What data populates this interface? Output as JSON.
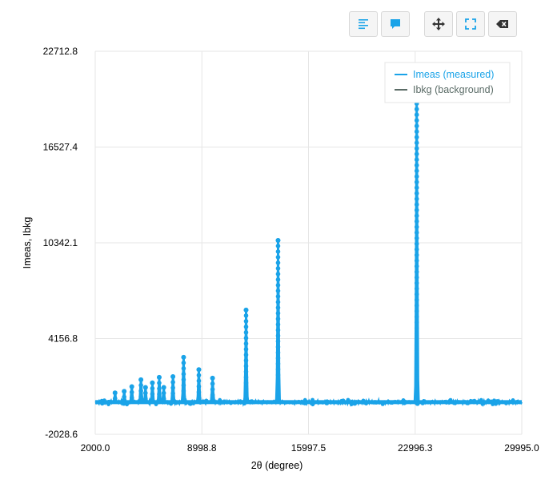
{
  "toolbar": {
    "buttons": [
      {
        "icon": "align-left-icon"
      },
      {
        "icon": "comment-icon"
      },
      {
        "icon": "move-icon"
      },
      {
        "icon": "fullscreen-icon"
      },
      {
        "icon": "backspace-icon"
      }
    ],
    "accent": "#1aa3e8",
    "dark": "#333333"
  },
  "chart_data": {
    "type": "line",
    "xlabel": "2θ (degree)",
    "ylabel": "Imeas, Ibkg",
    "xlim": [
      2000.0,
      29995.0
    ],
    "ylim": [
      -2028.6,
      22712.8
    ],
    "x_ticks": [
      "2000.0",
      "8998.8",
      "15997.5",
      "22996.3",
      "29995.0"
    ],
    "y_ticks": [
      "22712.8",
      "16527.4",
      "10342.1",
      "4156.8",
      "-2028.6"
    ],
    "grid": true,
    "legend_position": "top-right",
    "series": [
      {
        "name": "Imeas (measured)",
        "color": "#1aa3e8",
        "baseline": 50,
        "peaks": [
          {
            "x": 3300,
            "y": 650
          },
          {
            "x": 3900,
            "y": 750
          },
          {
            "x": 4400,
            "y": 1050
          },
          {
            "x": 5000,
            "y": 1500
          },
          {
            "x": 5300,
            "y": 1000
          },
          {
            "x": 5750,
            "y": 1300
          },
          {
            "x": 6200,
            "y": 1650
          },
          {
            "x": 6500,
            "y": 1000
          },
          {
            "x": 7100,
            "y": 1700
          },
          {
            "x": 7800,
            "y": 2950
          },
          {
            "x": 8800,
            "y": 2150
          },
          {
            "x": 9700,
            "y": 1600
          },
          {
            "x": 11900,
            "y": 6000
          },
          {
            "x": 14000,
            "y": 10500
          },
          {
            "x": 23100,
            "y": 19700
          }
        ]
      },
      {
        "name": "Ibkg (background)",
        "color": "#5a6b66",
        "baseline": 0
      }
    ]
  }
}
